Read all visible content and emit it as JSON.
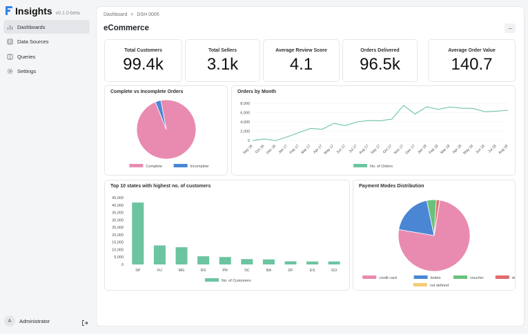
{
  "app": {
    "name": "Insights",
    "version": "v0.1.0-beta"
  },
  "sidebar": {
    "items": [
      {
        "label": "Dashboards",
        "icon": "bar-chart-icon"
      },
      {
        "label": "Data Sources",
        "icon": "database-icon"
      },
      {
        "label": "Queries",
        "icon": "book-icon"
      },
      {
        "label": "Settings",
        "icon": "gear-icon"
      }
    ],
    "user": {
      "initial": "A",
      "name": "Administrator"
    }
  },
  "breadcrumb": {
    "root": "Dashboard",
    "separator": ">",
    "current": "DSH 0005"
  },
  "page": {
    "title": "eCommerce",
    "menu_label": "···"
  },
  "metrics": [
    {
      "label": "Total Customers",
      "value": "99.4k"
    },
    {
      "label": "Total Sellers",
      "value": "3.1k"
    },
    {
      "label": "Average Review Score",
      "value": "4.1"
    },
    {
      "label": "Orders Delivered",
      "value": "96.5k"
    },
    {
      "label": "Average Order Value",
      "value": "140.7"
    }
  ],
  "colors": {
    "pink": "#e98bb0",
    "blue": "#4a86d4",
    "teal": "#6cc4a0",
    "green": "#6ac17c",
    "red": "#e16b6b",
    "yellow": "#f3cd75"
  },
  "chart_data": [
    {
      "type": "pie",
      "title": "Complete vs Incomplete Orders",
      "labels": [
        "Complete",
        "Incomplete"
      ],
      "values": [
        97,
        3
      ],
      "colors": [
        "#e98bb0",
        "#4a86d4"
      ]
    },
    {
      "type": "line",
      "title": "Orders by Month",
      "x": [
        "Sep 16",
        "Oct 16",
        "Dec 16",
        "Jan 17",
        "Feb 17",
        "Mar 17",
        "Apr 17",
        "May 17",
        "Jun 17",
        "Jul 17",
        "Aug 17",
        "Sep 17",
        "Oct 17",
        "Nov 17",
        "Dec 17",
        "Jan 18",
        "Feb 18",
        "Mar 18",
        "Apr 18",
        "May 18",
        "Jun 18",
        "Jul 18",
        "Aug 18"
      ],
      "series": [
        {
          "name": "No. of Orders",
          "values": [
            4,
            320,
            1,
            800,
            1700,
            2600,
            2400,
            3700,
            3200,
            4000,
            4300,
            4250,
            4600,
            7550,
            5700,
            7250,
            6700,
            7200,
            6950,
            6900,
            6200,
            6300,
            6500
          ]
        }
      ],
      "yticks": [
        "0",
        "2,000",
        "4,000",
        "6,000",
        "8,000"
      ],
      "ylim": [
        0,
        8000
      ],
      "color": "#6cc4a0"
    },
    {
      "type": "bar",
      "title": "Top 10 states with highest no. of customers",
      "categories": [
        "SP",
        "RJ",
        "MG",
        "RS",
        "PR",
        "SC",
        "BA",
        "DF",
        "ES",
        "GO"
      ],
      "series": [
        {
          "name": "No. of Customers",
          "values": [
            41700,
            12800,
            11600,
            5500,
            5000,
            3600,
            3400,
            2100,
            2000,
            2000
          ]
        }
      ],
      "yticks": [
        "0",
        "5,000",
        "10,000",
        "15,000",
        "20,000",
        "25,000",
        "30,000",
        "35,000",
        "40,000",
        "45,000"
      ],
      "ylim": [
        0,
        45000
      ],
      "color": "#6cc4a0"
    },
    {
      "type": "pie",
      "title": "Payment Modes Distribution",
      "labels": [
        "credit card",
        "boleto",
        "voucher",
        "debit card",
        "not defined"
      ],
      "values": [
        75.2,
        19.0,
        4.3,
        1.5,
        0.01
      ],
      "colors": [
        "#e98bb0",
        "#4a86d4",
        "#6ac17c",
        "#e16b6b",
        "#f3cd75"
      ]
    }
  ]
}
